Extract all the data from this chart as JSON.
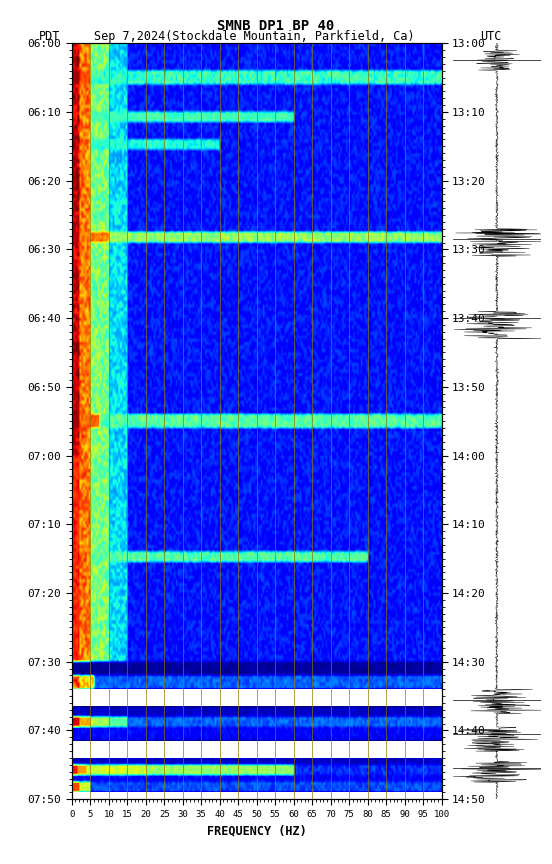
{
  "title": "SMNB DP1 BP 40",
  "subtitle_left": "PDT",
  "subtitle_center": "Sep 7,2024(Stockdale Mountain, Parkfield, Ca)",
  "subtitle_right": "UTC",
  "xlabel": "FREQUENCY (HZ)",
  "freq_ticks": [
    0,
    5,
    10,
    15,
    20,
    25,
    30,
    35,
    40,
    45,
    50,
    55,
    60,
    65,
    70,
    75,
    80,
    85,
    90,
    95,
    100
  ],
  "ytick_labels_left": [
    "06:00",
    "06:10",
    "06:20",
    "06:30",
    "06:40",
    "06:50",
    "07:00",
    "07:10",
    "07:20",
    "07:30",
    "07:40",
    "07:50"
  ],
  "ytick_labels_right": [
    "13:00",
    "13:10",
    "13:20",
    "13:30",
    "13:40",
    "13:50",
    "14:00",
    "14:10",
    "14:20",
    "14:30",
    "14:40",
    "14:50"
  ],
  "vertical_lines_freq": [
    5,
    10,
    15,
    20,
    25,
    30,
    35,
    40,
    45,
    50,
    55,
    60,
    65,
    70,
    75,
    80,
    85,
    90,
    95,
    100
  ],
  "fig_width": 5.52,
  "fig_height": 8.64,
  "background_color": "#ffffff"
}
